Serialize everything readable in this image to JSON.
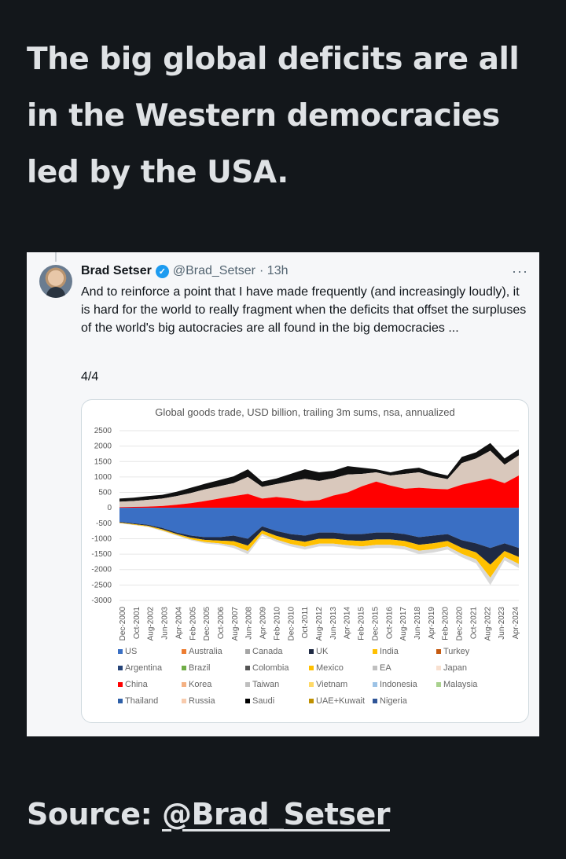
{
  "headline": "The big global deficits are all in the Western democracies led by the USA.",
  "tweet": {
    "author": "Brad Setser",
    "handle": "@Brad_Setser",
    "time": "· 13h",
    "more_label": "···",
    "text": "And to reinforce a point that I have made frequently (and increasingly loudly), it is hard for the world to really fragment when the deficits that offset the surpluses of the world's big autocracies are all found in the big democracies ...",
    "thread_count": "4/4"
  },
  "source": {
    "label": "Source:",
    "link": "@Brad_Setser"
  },
  "chart_data": {
    "type": "area",
    "title": "Global goods trade, USD billion, trailing 3m sums, nsa, annualized",
    "ylim": [
      -3000,
      2500
    ],
    "y_ticks": [
      2500,
      2000,
      1500,
      1000,
      500,
      0,
      -500,
      -1000,
      -1500,
      -2000,
      -2500,
      -3000
    ],
    "x_ticks": [
      "Dec-2000",
      "Oct-2001",
      "Aug-2002",
      "Jun-2003",
      "Apr-2004",
      "Feb-2005",
      "Dec-2005",
      "Oct-2006",
      "Aug-2007",
      "Jun-2008",
      "Apr-2009",
      "Feb-2010",
      "Dec-2010",
      "Oct-2011",
      "Aug-2012",
      "Jun-2013",
      "Apr-2014",
      "Feb-2015",
      "Dec-2015",
      "Oct-2016",
      "Aug-2017",
      "Jun-2018",
      "Apr-2019",
      "Feb-2020",
      "Dec-2020",
      "Oct-2021",
      "Aug-2022",
      "Jun-2023",
      "Apr-2024"
    ],
    "positive_total": [
      300,
      330,
      380,
      420,
      520,
      650,
      780,
      900,
      1020,
      1250,
      850,
      950,
      1100,
      1250,
      1150,
      1200,
      1350,
      1300,
      1250,
      1150,
      1250,
      1300,
      1150,
      1050,
      1650,
      1800,
      2100,
      1600,
      1900
    ],
    "positive_china": [
      20,
      30,
      40,
      60,
      100,
      150,
      220,
      300,
      380,
      450,
      300,
      350,
      300,
      220,
      250,
      400,
      500,
      700,
      850,
      720,
      620,
      650,
      620,
      600,
      750,
      850,
      950,
      800,
      1050
    ],
    "positive_other": [
      180,
      190,
      220,
      240,
      280,
      330,
      380,
      400,
      420,
      550,
      380,
      420,
      560,
      720,
      620,
      560,
      580,
      400,
      300,
      330,
      480,
      500,
      400,
      330,
      700,
      750,
      900,
      600,
      650
    ],
    "negative_us": [
      -450,
      -500,
      -550,
      -650,
      -800,
      -900,
      -950,
      -950,
      -900,
      -1000,
      -600,
      -750,
      -850,
      -900,
      -800,
      -800,
      -850,
      -850,
      -800,
      -800,
      -850,
      -950,
      -900,
      -850,
      -1050,
      -1150,
      -1300,
      -1150,
      -1300
    ],
    "negative_total": [
      -500,
      -560,
      -620,
      -750,
      -900,
      -1050,
      -1150,
      -1200,
      -1300,
      -1500,
      -900,
      -1100,
      -1250,
      -1350,
      -1250,
      -1250,
      -1300,
      -1350,
      -1300,
      -1300,
      -1350,
      -1500,
      -1450,
      -1350,
      -1600,
      -1800,
      -2500,
      -1700,
      -1950
    ],
    "legend": [
      {
        "name": "US",
        "color": "#3a6fc4"
      },
      {
        "name": "Australia",
        "color": "#ed7d31"
      },
      {
        "name": "Canada",
        "color": "#a5a5a5"
      },
      {
        "name": "UK",
        "color": "#1f2a44"
      },
      {
        "name": "India",
        "color": "#ffc000"
      },
      {
        "name": "Turkey",
        "color": "#c55a11"
      },
      {
        "name": "Argentina",
        "color": "#264478"
      },
      {
        "name": "Brazil",
        "color": "#70ad47"
      },
      {
        "name": "Colombia",
        "color": "#555555"
      },
      {
        "name": "Mexico",
        "color": "#ffc000"
      },
      {
        "name": "EA",
        "color": "#c0c0c0"
      },
      {
        "name": "Japan",
        "color": "#f8e0d0"
      },
      {
        "name": "China",
        "color": "#ff0000"
      },
      {
        "name": "Korea",
        "color": "#f4b183"
      },
      {
        "name": "Taiwan",
        "color": "#bfbfbf"
      },
      {
        "name": "Vietnam",
        "color": "#ffd966"
      },
      {
        "name": "Indonesia",
        "color": "#9dc3e6"
      },
      {
        "name": "Malaysia",
        "color": "#a9d18e"
      },
      {
        "name": "Thailand",
        "color": "#2e5fa8"
      },
      {
        "name": "Russia",
        "color": "#f8cbad"
      },
      {
        "name": "Saudi",
        "color": "#000000"
      },
      {
        "name": "UAE+Kuwait",
        "color": "#bf9000"
      },
      {
        "name": "Nigeria",
        "color": "#2f5597"
      }
    ]
  }
}
